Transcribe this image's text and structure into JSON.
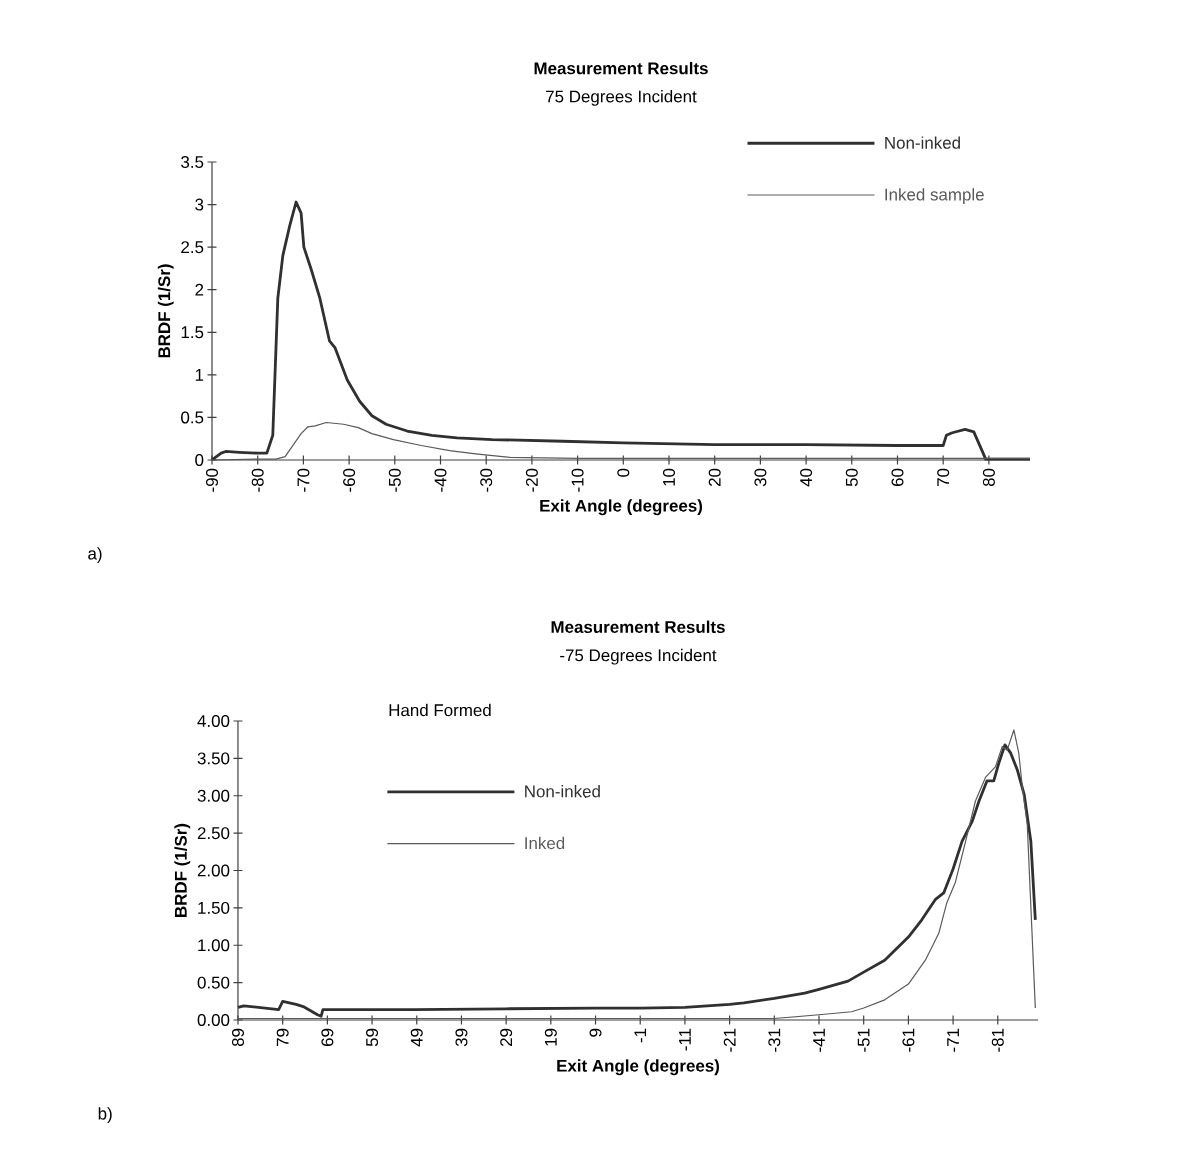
{
  "chart_data": [
    {
      "type": "line",
      "title": "Measurement Results",
      "subtitle": "75 Degrees Incident",
      "xlabel": "Exit Angle (degrees)",
      "ylabel": "BRDF (1/Sr)",
      "annotations": [
        "a)"
      ],
      "xlim": [
        -90,
        89
      ],
      "xticks": [
        -90,
        -80,
        -70,
        -60,
        -50,
        -40,
        -30,
        -20,
        -10,
        0,
        10,
        20,
        30,
        40,
        50,
        60,
        70,
        80
      ],
      "ylim": [
        0,
        3.5
      ],
      "yticks": [
        0,
        0.5,
        1,
        1.5,
        2,
        2.5,
        3,
        3.5
      ],
      "legend": "top right",
      "series": [
        {
          "name": "Non-inked",
          "color": "#303030",
          "x": [
            -90,
            -88,
            -87,
            -84,
            -80,
            -78,
            -76.7,
            -75.6,
            -74.5,
            -73,
            -71.6,
            -70.5,
            -69.9,
            -68.3,
            -66.4,
            -64.3,
            -63.1,
            -60.4,
            -57.7,
            -55,
            -51.9,
            -47.3,
            -41.9,
            -36.4,
            -28.7,
            -13.2,
            0,
            20,
            40,
            60,
            70,
            70.7,
            72,
            74.8,
            76.7,
            78.5,
            79.3,
            80,
            89
          ],
          "values": [
            0,
            0.08,
            0.1,
            0.09,
            0.08,
            0.08,
            0.29,
            1.9,
            2.4,
            2.75,
            3.03,
            2.9,
            2.5,
            2.24,
            1.9,
            1.4,
            1.32,
            0.94,
            0.69,
            0.52,
            0.42,
            0.34,
            0.29,
            0.26,
            0.24,
            0.22,
            0.2,
            0.18,
            0.18,
            0.17,
            0.17,
            0.29,
            0.32,
            0.36,
            0.33,
            0.11,
            0.01,
            0.01,
            0.01
          ]
        },
        {
          "name": "Inked sample",
          "color": "#5a5a5a",
          "x": [
            -90,
            -80,
            -76,
            -74,
            -70.5,
            -69,
            -67.4,
            -65,
            -61.2,
            -58,
            -55,
            -50.3,
            -44.2,
            -38,
            -31.8,
            -24.8,
            -10,
            20,
            50,
            89
          ],
          "values": [
            0,
            0.01,
            0.01,
            0.04,
            0.31,
            0.39,
            0.4,
            0.44,
            0.42,
            0.38,
            0.31,
            0.24,
            0.17,
            0.11,
            0.07,
            0.03,
            0.02,
            0.02,
            0.02,
            0.02
          ]
        }
      ]
    },
    {
      "type": "line",
      "title": "Measurement Results",
      "subtitle": "-75 Degrees Incident",
      "xlabel": "Exit Angle (degrees)",
      "ylabel": "BRDF (1/Sr)",
      "annotations": [
        "Hand Formed",
        "b)"
      ],
      "xlim": [
        89,
        -90
      ],
      "xticks": [
        89,
        79,
        69,
        59,
        49,
        39,
        29,
        19,
        9,
        -1,
        -11,
        -21,
        -31,
        -41,
        -51,
        -61,
        -71,
        -81
      ],
      "ylim": [
        0,
        4
      ],
      "yticks": [
        {
          "value": 0,
          "label": "0.00"
        },
        {
          "value": 0.5,
          "label": "0.50"
        },
        {
          "value": 1,
          "label": "1.00"
        },
        {
          "value": 1.5,
          "label": "1.50"
        },
        {
          "value": 2,
          "label": "2.00"
        },
        {
          "value": 2.5,
          "label": "2.50"
        },
        {
          "value": 3,
          "label": "3.00"
        },
        {
          "value": 3.5,
          "label": "3.50"
        },
        {
          "value": 4,
          "label": "4.00"
        }
      ],
      "legend": "top left",
      "series": [
        {
          "name": "Non-inked",
          "color": "#303030",
          "x": [
            89,
            87.7,
            79.9,
            79,
            76,
            74.4,
            71.2,
            70.4,
            70,
            65.6,
            49.9,
            29,
            9,
            -1,
            -11,
            -21,
            -24.2,
            -31,
            -37.8,
            -41,
            -47.5,
            -51,
            -55.7,
            -61,
            -64,
            -67,
            -68.9,
            -71,
            -73,
            -75.3,
            -76.8,
            -78.6,
            -80.1,
            -81.2,
            -82.6,
            -83.9,
            -85.4,
            -86.9,
            -88.4,
            -89.4
          ],
          "values": [
            0.17,
            0.19,
            0.14,
            0.25,
            0.21,
            0.18,
            0.07,
            0.05,
            0.14,
            0.14,
            0.14,
            0.15,
            0.16,
            0.16,
            0.17,
            0.21,
            0.23,
            0.29,
            0.36,
            0.41,
            0.52,
            0.64,
            0.8,
            1.11,
            1.34,
            1.61,
            1.7,
            2.02,
            2.39,
            2.66,
            2.93,
            3.2,
            3.2,
            3.43,
            3.68,
            3.57,
            3.34,
            3.02,
            2.39,
            1.34
          ]
        },
        {
          "name": "Inked",
          "color": "#5a5a5a",
          "x": [
            89,
            60,
            30,
            0,
            -31,
            -41,
            -48.3,
            -51,
            -55.7,
            -61,
            -64.8,
            -67.8,
            -69.6,
            -71.5,
            -73.8,
            -76,
            -78.3,
            -80.5,
            -82,
            -83.1,
            -84.6,
            -85.7,
            -86.5,
            -87.6,
            -89.4
          ],
          "values": [
            0.02,
            0.02,
            0.02,
            0.02,
            0.02,
            0.07,
            0.11,
            0.16,
            0.27,
            0.48,
            0.8,
            1.16,
            1.57,
            1.84,
            2.39,
            2.93,
            3.25,
            3.39,
            3.66,
            3.61,
            3.88,
            3.57,
            3.11,
            2.61,
            0.16
          ]
        }
      ]
    }
  ]
}
